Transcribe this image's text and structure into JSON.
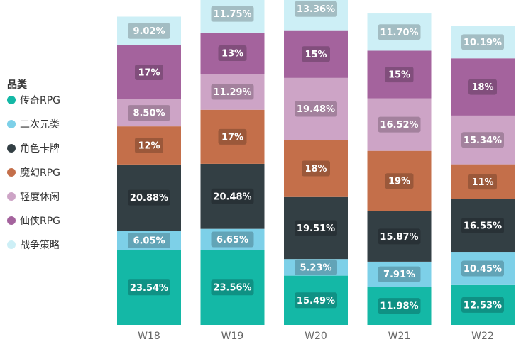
{
  "chart_data": {
    "type": "bar",
    "stacked": true,
    "normalized": true,
    "categories": [
      "W18",
      "W19",
      "W20",
      "W21",
      "W22"
    ],
    "legend": {
      "title": "品类",
      "placement": "left"
    },
    "label_format": {
      "传奇RPG": "2dp",
      "二次元类": "2dp",
      "角色卡牌": "2dp",
      "魔幻RPG": "0dp",
      "轻度休闲": "2dp",
      "仙侠RPG": "0dp",
      "战争策略": "2dp"
    },
    "series": [
      {
        "name": "传奇RPG",
        "color": "#14b8a6",
        "values": [
          23.54,
          23.56,
          15.49,
          11.98,
          12.53
        ]
      },
      {
        "name": "二次元类",
        "color": "#7dd0e8",
        "values": [
          6.05,
          6.65,
          5.23,
          7.91,
          10.45
        ]
      },
      {
        "name": "角色卡牌",
        "color": "#333f44",
        "values": [
          20.88,
          20.48,
          19.51,
          15.87,
          16.55
        ]
      },
      {
        "name": "魔幻RPG",
        "color": "#c46f4a",
        "values": [
          12,
          17,
          18,
          19,
          11
        ]
      },
      {
        "name": "轻度休闲",
        "color": "#cda4c6",
        "values": [
          8.5,
          11.29,
          19.48,
          16.52,
          15.34
        ]
      },
      {
        "name": "仙侠RPG",
        "color": "#a4639d",
        "values": [
          17,
          13,
          15,
          15,
          18
        ]
      },
      {
        "name": "战争策略",
        "color": "#cdeff6",
        "values": [
          9.02,
          11.75,
          13.36,
          11.7,
          10.19
        ]
      }
    ]
  }
}
